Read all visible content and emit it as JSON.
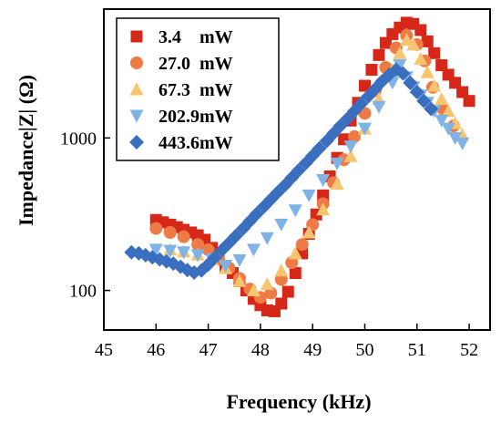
{
  "chart_data": {
    "type": "scatter",
    "xlabel": "Frequency (kHz)",
    "ylabel": "Impedance|Z| (Ω)",
    "xlim": [
      45,
      52.4
    ],
    "ylim": [
      55,
      7000
    ],
    "yscale": "log",
    "xticks": [
      45,
      46,
      47,
      48,
      49,
      50,
      51,
      52
    ],
    "xtick_labels": [
      "45",
      "46",
      "47",
      "48",
      "49",
      "50",
      "51",
      "52"
    ],
    "yticks": [
      100,
      1000
    ],
    "ytick_labels": [
      "100",
      "1000"
    ],
    "legend_position": "top-left",
    "series": [
      {
        "name": "3.4    mW",
        "color": "#D62718",
        "marker": "square",
        "points": [
          [
            46.0,
            290
          ],
          [
            46.13,
            280
          ],
          [
            46.27,
            270
          ],
          [
            46.4,
            260
          ],
          [
            46.53,
            250
          ],
          [
            46.67,
            240
          ],
          [
            46.8,
            230
          ],
          [
            46.93,
            215
          ],
          [
            47.07,
            190
          ],
          [
            47.2,
            165
          ],
          [
            47.33,
            145
          ],
          [
            47.47,
            130
          ],
          [
            47.6,
            115
          ],
          [
            47.73,
            100
          ],
          [
            47.87,
            88
          ],
          [
            48.0,
            80
          ],
          [
            48.13,
            74
          ],
          [
            48.27,
            73
          ],
          [
            48.4,
            82
          ],
          [
            48.53,
            98
          ],
          [
            48.67,
            130
          ],
          [
            48.8,
            175
          ],
          [
            48.93,
            235
          ],
          [
            49.07,
            315
          ],
          [
            49.2,
            420
          ],
          [
            49.33,
            560
          ],
          [
            49.47,
            740
          ],
          [
            49.6,
            980
          ],
          [
            49.73,
            1300
          ],
          [
            49.87,
            1700
          ],
          [
            50.0,
            2200
          ],
          [
            50.13,
            2800
          ],
          [
            50.27,
            3500
          ],
          [
            50.4,
            4200
          ],
          [
            50.53,
            4800
          ],
          [
            50.67,
            5300
          ],
          [
            50.8,
            5700
          ],
          [
            50.93,
            5600
          ],
          [
            51.07,
            5100
          ],
          [
            51.2,
            4300
          ],
          [
            51.33,
            3600
          ],
          [
            51.47,
            3000
          ],
          [
            51.6,
            2600
          ],
          [
            51.73,
            2300
          ],
          [
            51.87,
            2000
          ],
          [
            52.0,
            1750
          ]
        ]
      },
      {
        "name": "27.0  mW",
        "color": "#EE7A45",
        "marker": "circle",
        "points": [
          [
            46.0,
            255
          ],
          [
            46.27,
            240
          ],
          [
            46.53,
            225
          ],
          [
            46.8,
            200
          ],
          [
            47.0,
            185
          ],
          [
            47.2,
            160
          ],
          [
            47.4,
            140
          ],
          [
            47.6,
            120
          ],
          [
            47.8,
            102
          ],
          [
            48.0,
            90
          ],
          [
            48.2,
            96
          ],
          [
            48.4,
            118
          ],
          [
            48.6,
            152
          ],
          [
            48.8,
            200
          ],
          [
            49.0,
            270
          ],
          [
            49.2,
            370
          ],
          [
            49.4,
            510
          ],
          [
            49.6,
            720
          ],
          [
            49.8,
            1020
          ],
          [
            50.0,
            1450
          ],
          [
            50.2,
            2050
          ],
          [
            50.4,
            2900
          ],
          [
            50.6,
            3900
          ],
          [
            50.8,
            4700
          ],
          [
            51.0,
            4100
          ],
          [
            51.15,
            3200
          ],
          [
            51.3,
            2150
          ],
          [
            51.5,
            1550
          ],
          [
            51.7,
            1200
          ]
        ]
      },
      {
        "name": "67.3  mW",
        "color": "#F7C46F",
        "marker": "triangle-up",
        "points": [
          [
            46.27,
            185
          ],
          [
            46.53,
            180
          ],
          [
            46.8,
            172
          ],
          [
            47.07,
            160
          ],
          [
            47.33,
            140
          ],
          [
            47.6,
            115
          ],
          [
            47.87,
            100
          ],
          [
            48.13,
            110
          ],
          [
            48.4,
            135
          ],
          [
            48.67,
            175
          ],
          [
            48.93,
            240
          ],
          [
            49.2,
            340
          ],
          [
            49.47,
            500
          ],
          [
            49.73,
            760
          ],
          [
            50.0,
            1150
          ],
          [
            50.27,
            1800
          ],
          [
            50.53,
            2800
          ],
          [
            50.67,
            3600
          ],
          [
            50.8,
            4400
          ],
          [
            50.93,
            4100
          ],
          [
            51.07,
            3300
          ],
          [
            51.2,
            2700
          ],
          [
            51.33,
            2200
          ],
          [
            51.47,
            1800
          ],
          [
            51.6,
            1500
          ],
          [
            51.73,
            1250
          ],
          [
            51.87,
            1050
          ]
        ]
      },
      {
        "name": "202.9mW",
        "color": "#7FB2E5",
        "marker": "triangle-down",
        "points": [
          [
            46.0,
            185
          ],
          [
            46.27,
            182
          ],
          [
            46.53,
            178
          ],
          [
            46.8,
            170
          ],
          [
            47.07,
            160
          ],
          [
            47.33,
            145
          ],
          [
            47.6,
            158
          ],
          [
            47.87,
            185
          ],
          [
            48.13,
            220
          ],
          [
            48.4,
            270
          ],
          [
            48.67,
            335
          ],
          [
            48.93,
            420
          ],
          [
            49.2,
            530
          ],
          [
            49.47,
            680
          ],
          [
            49.73,
            880
          ],
          [
            50.0,
            1150
          ],
          [
            50.27,
            1600
          ],
          [
            50.53,
            2300
          ],
          [
            50.67,
            3000
          ],
          [
            50.8,
            2500
          ],
          [
            50.93,
            2150
          ],
          [
            51.07,
            1900
          ],
          [
            51.2,
            1700
          ],
          [
            51.33,
            1500
          ],
          [
            51.47,
            1300
          ],
          [
            51.6,
            1150
          ],
          [
            51.73,
            1000
          ],
          [
            51.87,
            920
          ]
        ]
      },
      {
        "name": "443.6mW",
        "color": "#3A6FBF",
        "marker": "diamond",
        "points": [
          [
            45.53,
            178
          ],
          [
            45.67,
            175
          ],
          [
            45.8,
            170
          ],
          [
            45.93,
            165
          ],
          [
            46.07,
            160
          ],
          [
            46.2,
            155
          ],
          [
            46.33,
            150
          ],
          [
            46.47,
            143
          ],
          [
            46.6,
            136
          ],
          [
            46.73,
            131
          ],
          [
            46.87,
            135
          ],
          [
            47.0,
            148
          ],
          [
            47.13,
            165
          ],
          [
            47.27,
            185
          ],
          [
            47.4,
            205
          ],
          [
            47.53,
            228
          ],
          [
            47.67,
            255
          ],
          [
            47.8,
            285
          ],
          [
            47.93,
            318
          ],
          [
            48.07,
            355
          ],
          [
            48.2,
            395
          ],
          [
            48.33,
            440
          ],
          [
            48.47,
            490
          ],
          [
            48.6,
            548
          ],
          [
            48.73,
            612
          ],
          [
            48.87,
            685
          ],
          [
            49.0,
            765
          ],
          [
            49.13,
            855
          ],
          [
            49.27,
            955
          ],
          [
            49.4,
            1070
          ],
          [
            49.53,
            1200
          ],
          [
            49.67,
            1340
          ],
          [
            49.8,
            1500
          ],
          [
            49.93,
            1680
          ],
          [
            50.07,
            1880
          ],
          [
            50.2,
            2100
          ],
          [
            50.33,
            2350
          ],
          [
            50.47,
            2600
          ],
          [
            50.6,
            2800
          ],
          [
            50.73,
            2650
          ],
          [
            50.87,
            2300
          ],
          [
            51.0,
            2000
          ],
          [
            51.13,
            1750
          ],
          [
            51.27,
            1550
          ]
        ]
      }
    ]
  }
}
